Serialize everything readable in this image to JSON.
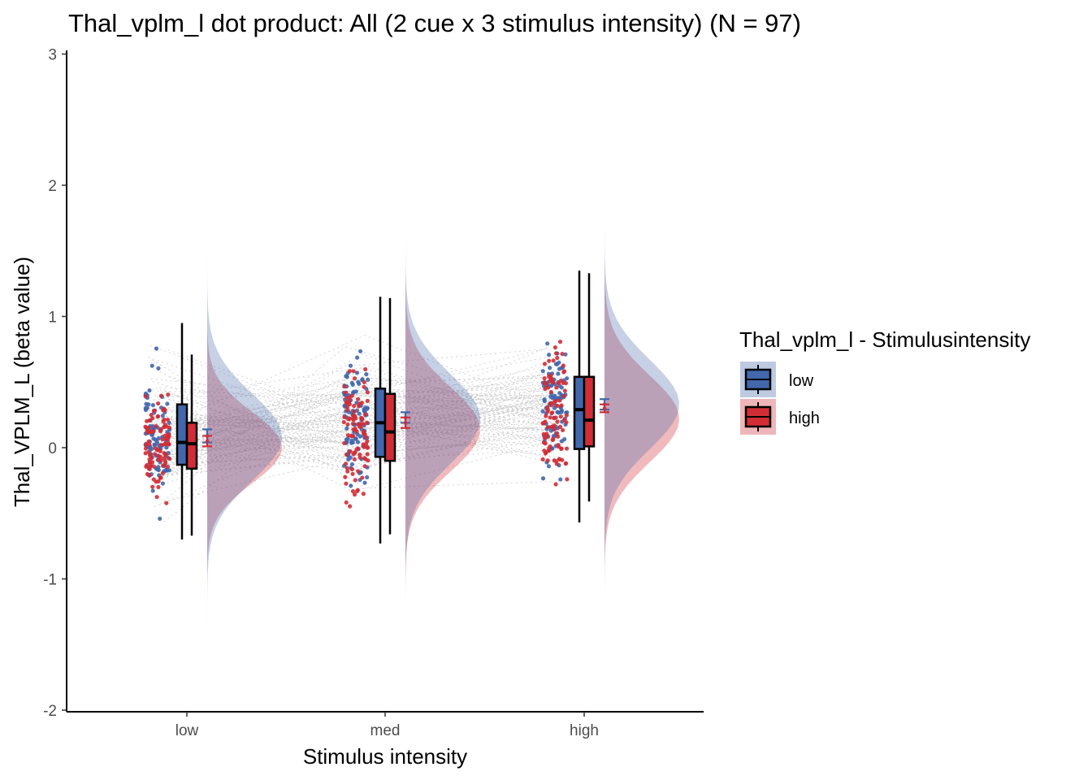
{
  "chart_data": {
    "type": "raincloud",
    "title": "Thal_vplm_l dot product: All (2 cue x 3 stimulus intensity) (N = 97)",
    "xlabel": "Stimulus intensity",
    "ylabel": "Thal_VPLM_L  (beta value)",
    "categories": [
      "low",
      "med",
      "high"
    ],
    "ylim": [
      -2,
      3
    ],
    "yticks": [
      -2,
      -1,
      0,
      1,
      2,
      3
    ],
    "n": 97,
    "legend": {
      "title": "Thal_vplm_l - Stimulusintensity",
      "position": "right",
      "entries": [
        {
          "name": "low",
          "color": "#4267ac"
        },
        {
          "name": "high",
          "color": "#d22d36"
        }
      ]
    },
    "series": [
      {
        "name": "low",
        "color": "#4267ac",
        "box": [
          {
            "category": "low",
            "whisker_low": -0.7,
            "q1": -0.13,
            "median": 0.04,
            "q3": 0.33,
            "whisker_high": 0.95
          },
          {
            "category": "med",
            "whisker_low": -0.73,
            "q1": -0.07,
            "median": 0.19,
            "q3": 0.45,
            "whisker_high": 1.15
          },
          {
            "category": "high",
            "whisker_low": -0.57,
            "q1": -0.01,
            "median": 0.29,
            "q3": 0.54,
            "whisker_high": 1.35
          }
        ],
        "mean_se": [
          {
            "category": "low",
            "mean": 0.09,
            "se": 0.05
          },
          {
            "category": "med",
            "mean": 0.23,
            "se": 0.04
          },
          {
            "category": "high",
            "mean": 0.33,
            "se": 0.04
          }
        ],
        "density": [
          {
            "category": "low",
            "mu": 0.08,
            "sigma": 0.33,
            "range": [
              -1.6,
              1.5
            ]
          },
          {
            "category": "med",
            "mu": 0.22,
            "sigma": 0.34,
            "range": [
              -1.15,
              2.0
            ]
          },
          {
            "category": "high",
            "mu": 0.33,
            "sigma": 0.34,
            "range": [
              -1.75,
              2.8
            ]
          }
        ]
      },
      {
        "name": "high",
        "color": "#d22d36",
        "box": [
          {
            "category": "low",
            "whisker_low": -0.67,
            "q1": -0.16,
            "median": 0.03,
            "q3": 0.19,
            "whisker_high": 0.71
          },
          {
            "category": "med",
            "whisker_low": -0.66,
            "q1": -0.1,
            "median": 0.12,
            "q3": 0.41,
            "whisker_high": 1.14
          },
          {
            "category": "high",
            "whisker_low": -0.41,
            "q1": 0.01,
            "median": 0.21,
            "q3": 0.54,
            "whisker_high": 1.33
          }
        ],
        "mean_se": [
          {
            "category": "low",
            "mean": 0.05,
            "se": 0.04
          },
          {
            "category": "med",
            "mean": 0.19,
            "se": 0.04
          },
          {
            "category": "high",
            "mean": 0.3,
            "se": 0.03
          }
        ],
        "density": [
          {
            "category": "low",
            "mu": 0.0,
            "sigma": 0.27,
            "range": [
              -0.95,
              1.5
            ]
          },
          {
            "category": "med",
            "mu": 0.14,
            "sigma": 0.32,
            "range": [
              -1.15,
              2.0
            ]
          },
          {
            "category": "high",
            "mu": 0.22,
            "sigma": 0.33,
            "range": [
              -1.75,
              2.6
            ]
          }
        ]
      }
    ]
  }
}
